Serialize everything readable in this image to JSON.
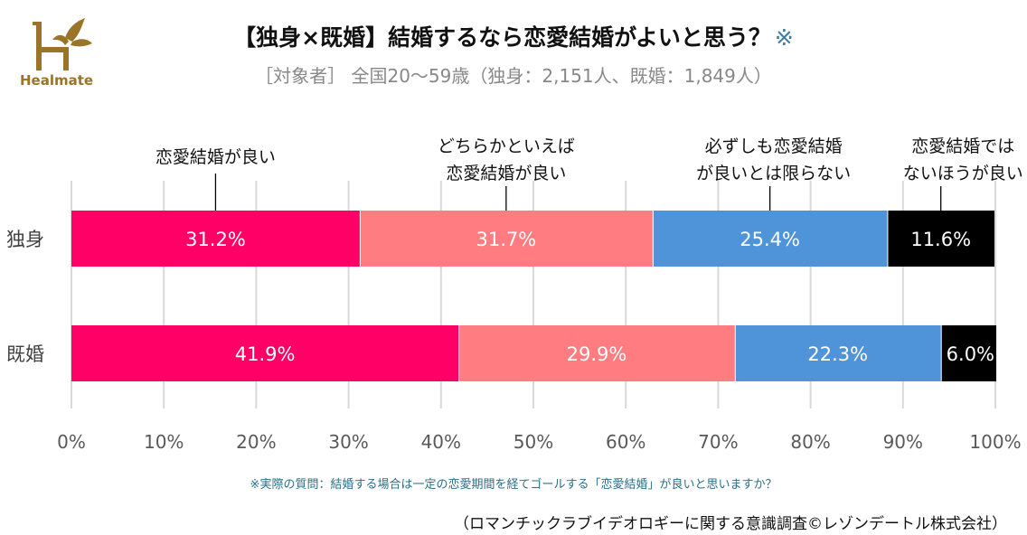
{
  "logo": {
    "brand": "Healmate",
    "color": "#9a7429"
  },
  "header": {
    "title": "【独身×既婚】結婚するなら恋愛結婚がよいと思う？",
    "title_mark": "※",
    "subtitle": "［対象者］ 全国20～59歳（独身：2,151人、既婚：1,849人）"
  },
  "footer": {
    "note": "※実際の質問：結婚する場合は一定の恋愛期間を経てゴールする「恋愛結婚」が良いと思いますか？",
    "source": "（ロマンチックラブイデオロギーに関する意識調査©レゾンデートル株式会社）"
  },
  "chart_data": {
    "type": "bar",
    "orientation": "horizontal",
    "stacked": true,
    "title": "【独身×既婚】結婚するなら恋愛結婚がよいと思う？※",
    "subtitle": "［対象者］ 全国20～59歳（独身：2,151人、既婚：1,849人）",
    "xlabel": "",
    "ylabel": "",
    "categories": [
      "独身",
      "既婚"
    ],
    "xlim": [
      0,
      100
    ],
    "x_ticks": [
      "0%",
      "10%",
      "20%",
      "30%",
      "40%",
      "50%",
      "60%",
      "70%",
      "80%",
      "90%",
      "100%"
    ],
    "grid": true,
    "legend_placement": "top (callout labels above bars)",
    "series": [
      {
        "name": "恋愛結婚が良い",
        "label_lines": [
          "恋愛結婚が良い"
        ],
        "color": "#ff0066",
        "values": [
          31.2,
          41.9
        ],
        "labels": [
          "31.2%",
          "41.9%"
        ]
      },
      {
        "name": "どちらかといえば恋愛結婚が良い",
        "label_lines": [
          "どちらかといえば",
          "恋愛結婚が良い"
        ],
        "color": "#ff7c80",
        "values": [
          31.7,
          29.9
        ],
        "labels": [
          "31.7%",
          "29.9%"
        ]
      },
      {
        "name": "必ずしも恋愛結婚が良いとは限らない",
        "label_lines": [
          "必ずしも恋愛結婚",
          "が良いとは限らない"
        ],
        "color": "#4f94d9",
        "values": [
          25.4,
          22.3
        ],
        "labels": [
          "25.4%",
          "22.3%"
        ]
      },
      {
        "name": "恋愛結婚ではないほうが良い",
        "label_lines": [
          "恋愛結婚では",
          "ないほうが良い"
        ],
        "color": "#000000",
        "values": [
          11.6,
          6.0
        ],
        "labels": [
          "11.6%",
          "6.0%"
        ]
      }
    ]
  }
}
